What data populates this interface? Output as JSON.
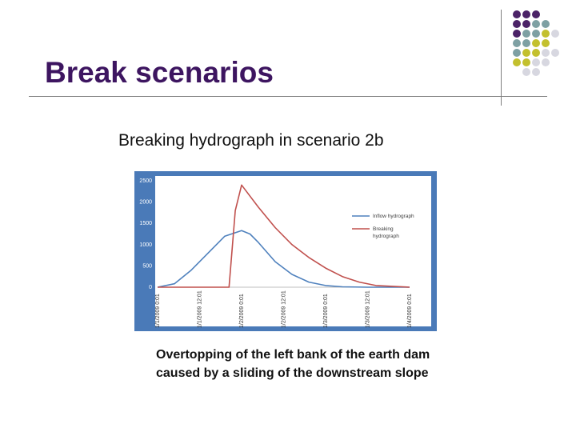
{
  "slide": {
    "title": "Break scenarios",
    "subtitle": "Breaking hydrograph in scenario 2b",
    "caption_line1": "Overtopping of the left bank of the earth dam",
    "caption_line2": "caused by a sliding of the downstream slope"
  },
  "decor": {
    "dot_colors": [
      "#4b2267",
      "#7ea0a3",
      "#c3c02e",
      "#d7d7e0"
    ]
  },
  "chart_data": {
    "type": "line",
    "title": "",
    "xlabel": "",
    "ylabel": "",
    "ylim": [
      0,
      2500
    ],
    "yticks": [
      0,
      500,
      1000,
      1500,
      2000,
      2500
    ],
    "xticks": [
      "1/1/2009 0:01",
      "1/1/2009 12:01",
      "1/2/2009 0:01",
      "1/2/2009 12:01",
      "1/3/2009 0:01",
      "1/3/2009 12:01",
      "1/4/2009 0:01"
    ],
    "xlim": [
      0,
      6
    ],
    "grid": false,
    "legend": "right",
    "background": "#4a7ab8",
    "series": [
      {
        "name": "Inflow hydrograph",
        "color": "#4f81bd",
        "x": [
          0,
          0.4,
          0.8,
          1.2,
          1.6,
          2.0,
          2.2,
          2.4,
          2.8,
          3.2,
          3.6,
          4.0,
          4.4,
          5.0,
          6.0
        ],
        "y": [
          0,
          80,
          400,
          800,
          1200,
          1330,
          1250,
          1050,
          600,
          300,
          120,
          40,
          10,
          0,
          0
        ]
      },
      {
        "name": "Breaking hydrograph",
        "color": "#c0504d",
        "x": [
          0,
          1.3,
          1.5,
          1.7,
          1.85,
          2.0,
          2.4,
          2.8,
          3.2,
          3.6,
          4.0,
          4.4,
          4.8,
          5.2,
          6.0
        ],
        "y": [
          0,
          0,
          0,
          0,
          1800,
          2400,
          1880,
          1400,
          1000,
          700,
          450,
          250,
          120,
          40,
          0
        ]
      }
    ]
  }
}
